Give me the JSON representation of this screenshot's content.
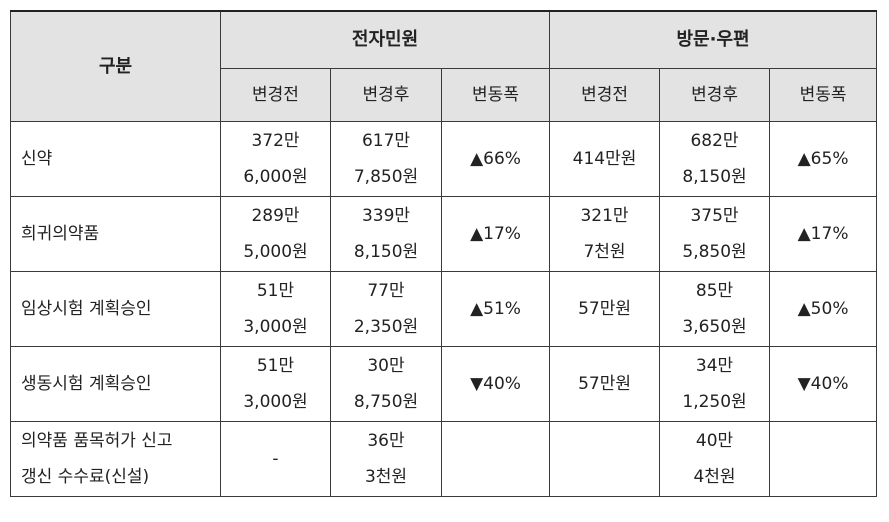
{
  "header": {
    "gubun": "구분",
    "groups": [
      "전자민원",
      "방문·우편"
    ],
    "sub": [
      "변경전",
      "변경후",
      "변동폭",
      "변경전",
      "변경후",
      "변동폭"
    ]
  },
  "rows": [
    {
      "name": [
        "신약"
      ],
      "e_before": [
        "372만",
        "6,000원"
      ],
      "e_after": [
        "617만",
        "7,850원"
      ],
      "e_change": "▲66%",
      "v_before": [
        "414만원"
      ],
      "v_after": [
        "682만",
        "8,150원"
      ],
      "v_change": "▲65%"
    },
    {
      "name": [
        "희귀의약품"
      ],
      "e_before": [
        "289만",
        "5,000원"
      ],
      "e_after": [
        "339만",
        "8,150원"
      ],
      "e_change": "▲17%",
      "v_before": [
        "321만",
        "7천원"
      ],
      "v_after": [
        "375만",
        "5,850원"
      ],
      "v_change": "▲17%"
    },
    {
      "name": [
        "임상시험 계획승인"
      ],
      "e_before": [
        "51만",
        "3,000원"
      ],
      "e_after": [
        "77만",
        "2,350원"
      ],
      "e_change": "▲51%",
      "v_before": [
        "57만원"
      ],
      "v_after": [
        "85만",
        "3,650원"
      ],
      "v_change": "▲50%"
    },
    {
      "name": [
        "생동시험 계획승인"
      ],
      "e_before": [
        "51만",
        "3,000원"
      ],
      "e_after": [
        "30만",
        "8,750원"
      ],
      "e_change": "▼40%",
      "v_before": [
        "57만원"
      ],
      "v_after": [
        "34만",
        "1,250원"
      ],
      "v_change": "▼40%"
    },
    {
      "name": [
        "의약품 품목허가 신고",
        "갱신 수수료(신설)"
      ],
      "e_before": [
        "-"
      ],
      "e_after": [
        "36만",
        "3천원"
      ],
      "e_change": "",
      "v_before": [
        ""
      ],
      "v_after": [
        "40만",
        "4천원"
      ],
      "v_change": ""
    }
  ]
}
